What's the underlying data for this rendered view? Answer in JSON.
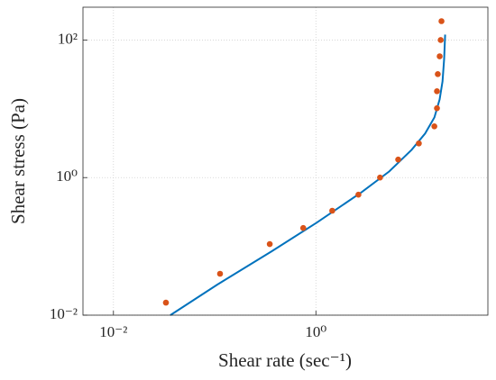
{
  "chart_data": {
    "type": "scatter",
    "log_x": true,
    "log_y": true,
    "grid": true,
    "xlabel": "Shear rate (sec⁻¹)",
    "ylabel": "Shear stress (Pa)",
    "xlim": [
      0.005,
      50
    ],
    "ylim": [
      0.01,
      300
    ],
    "xticks": [
      {
        "value": 0.01,
        "label": "10⁻²"
      },
      {
        "value": 1,
        "label": "10⁰"
      }
    ],
    "yticks": [
      {
        "value": 0.01,
        "label": "10⁻²"
      },
      {
        "value": 1,
        "label": "10⁰"
      },
      {
        "value": 100,
        "label": "10²"
      }
    ],
    "series": [
      {
        "type": "line",
        "color": "#0072bd",
        "x": [
          0.0365,
          0.106,
          0.365,
          1.02,
          2.85,
          5.3,
          8.84,
          12.0,
          14.8,
          16.7,
          17.8,
          18.5,
          18.9
        ],
        "values": [
          0.01,
          0.0278,
          0.0848,
          0.222,
          0.618,
          1.23,
          2.54,
          4.37,
          7.5,
          13.7,
          25,
          53,
          120
        ]
      },
      {
        "type": "scatter",
        "color": "#d95319",
        "x": [
          0.033,
          0.113,
          0.35,
          0.75,
          1.45,
          2.63,
          4.3,
          6.5,
          10.4,
          14.8,
          15.7,
          15.7,
          16.0,
          16.7,
          17.1,
          17.4
        ],
        "values": [
          0.0152,
          0.04,
          0.108,
          0.185,
          0.33,
          0.565,
          1.0,
          1.83,
          3.14,
          5.56,
          10.2,
          18,
          31.9,
          58,
          100,
          188
        ]
      }
    ]
  }
}
